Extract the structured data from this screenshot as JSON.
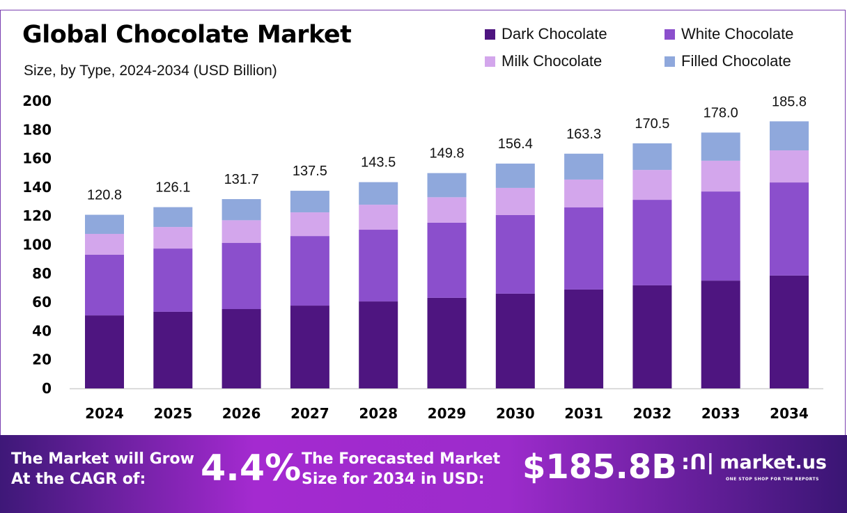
{
  "header": {
    "title": "Global Chocolate Market",
    "subtitle": "Size, by Type, 2024-2034 (USD Billion)"
  },
  "banner": {
    "cagr_label": [
      "The Market will Grow",
      "At the CAGR of:"
    ],
    "cagr_value": "4.4%",
    "forecast_label": [
      "The Forecasted Market",
      "Size for 2034 in USD:"
    ],
    "forecast_value": "$185.8B",
    "logo_text": "market.us",
    "logo_tagline": "ONE STOP SHOP FOR THE REPORTS",
    "colors": {
      "edge": "#3e1878",
      "center": "#a42ad0"
    }
  },
  "chart_data": {
    "type": "bar",
    "stacked": true,
    "title": "Global Chocolate Market",
    "subtitle": "Size, by Type, 2024-2034 (USD Billion)",
    "xlabel": "",
    "ylabel": "",
    "ylim": [
      0,
      200
    ],
    "yticks": [
      0,
      20,
      40,
      60,
      80,
      100,
      120,
      140,
      160,
      180,
      200
    ],
    "grid": false,
    "legend_position": "top-right",
    "categories": [
      "2024",
      "2025",
      "2026",
      "2027",
      "2028",
      "2029",
      "2030",
      "2031",
      "2032",
      "2033",
      "2034"
    ],
    "series": [
      {
        "name": "Dark Chocolate",
        "color": "#4e1580",
        "values": [
          50.8,
          53.3,
          55.2,
          57.6,
          60.5,
          63.0,
          65.9,
          68.8,
          71.7,
          75.0,
          78.5
        ]
      },
      {
        "name": "White Chocolate",
        "color": "#8b4fcc",
        "values": [
          42.2,
          44.0,
          46.0,
          48.4,
          49.9,
          52.3,
          54.7,
          57.1,
          59.5,
          62.0,
          64.8
        ]
      },
      {
        "name": "Milk Chocolate",
        "color": "#d3a6ec",
        "values": [
          14.5,
          15.0,
          15.8,
          16.5,
          17.4,
          17.7,
          18.9,
          19.4,
          20.8,
          21.4,
          22.3
        ]
      },
      {
        "name": "Filled Chocolate",
        "color": "#8fa8dc",
        "values": [
          13.3,
          13.8,
          14.7,
          15.0,
          15.7,
          16.8,
          16.9,
          18.0,
          18.5,
          19.6,
          20.2
        ]
      }
    ],
    "totals": [
      "120.8",
      "126.1",
      "131.7",
      "137.5",
      "143.5",
      "149.8",
      "156.4",
      "163.3",
      "170.5",
      "178.0",
      "185.8"
    ]
  }
}
